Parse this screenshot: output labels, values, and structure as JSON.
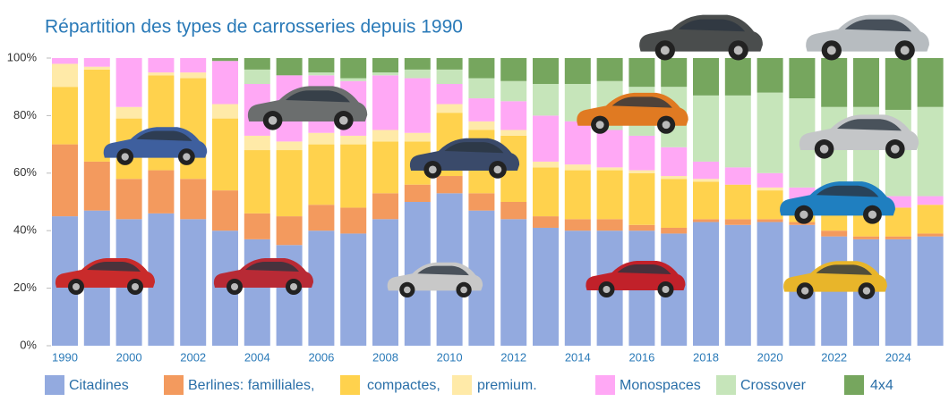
{
  "chart_data": {
    "type": "stacked-bar",
    "title": "Répartition des types de carrosseries depuis 1990",
    "categories": [
      "1990",
      null,
      "2000",
      null,
      "2002",
      null,
      "2004",
      null,
      "2006",
      null,
      "2008",
      null,
      "2010",
      null,
      "2012",
      null,
      "2014",
      null,
      "2016",
      null,
      "2018",
      null,
      "2020",
      null,
      "2022",
      null,
      "2024",
      null
    ],
    "series": [
      {
        "name": "Citadines",
        "color": "#93aadf",
        "values": [
          45,
          47,
          44,
          46,
          44,
          40,
          37,
          35,
          40,
          39,
          44,
          50,
          53,
          47,
          44,
          41,
          40,
          40,
          40,
          39,
          43,
          42,
          43,
          42,
          38,
          37,
          37,
          38
        ]
      },
      {
        "name": "Berlines: familliales,",
        "color": "#f39a5e",
        "values": [
          25,
          17,
          14,
          15,
          14,
          14,
          9,
          10,
          9,
          9,
          9,
          6,
          6,
          6,
          6,
          4,
          4,
          4,
          2,
          2,
          1,
          2,
          1,
          1,
          2,
          1,
          1,
          1
        ]
      },
      {
        "name": "compactes,",
        "color": "#ffd24d",
        "values": [
          20,
          32,
          21,
          33,
          35,
          25,
          22,
          23,
          21,
          22,
          18,
          15,
          22,
          22,
          23,
          17,
          17,
          17,
          18,
          17,
          13,
          12,
          10,
          8,
          8,
          8,
          10,
          10
        ]
      },
      {
        "name": "premium.",
        "color": "#ffeaa8",
        "values": [
          8,
          1,
          4,
          1,
          2,
          5,
          5,
          3,
          4,
          3,
          4,
          3,
          3,
          3,
          2,
          2,
          2,
          1,
          1,
          1,
          1,
          0,
          1,
          0,
          0,
          0,
          0,
          0
        ]
      },
      {
        "name": "Monospaces",
        "color": "#ffa8f5",
        "values": [
          2,
          3,
          17,
          5,
          5,
          15,
          18,
          23,
          20,
          19,
          19,
          19,
          7,
          8,
          10,
          16,
          15,
          13,
          12,
          10,
          6,
          6,
          5,
          4,
          3,
          4,
          4,
          3
        ]
      },
      {
        "name": "Crossover",
        "color": "#c6e5ba",
        "values": [
          0,
          0,
          0,
          0,
          0,
          0,
          5,
          0,
          1,
          1,
          1,
          3,
          5,
          7,
          7,
          11,
          13,
          17,
          17,
          21,
          23,
          25,
          28,
          31,
          32,
          33,
          30,
          31
        ]
      },
      {
        "name": "4x4",
        "color": "#76a65e",
        "values": [
          0,
          0,
          0,
          0,
          0,
          1,
          4,
          6,
          5,
          7,
          5,
          4,
          4,
          7,
          8,
          9,
          9,
          8,
          10,
          10,
          13,
          13,
          12,
          14,
          17,
          17,
          18,
          17
        ]
      }
    ],
    "ylim": [
      0,
      100
    ],
    "yticks": [
      {
        "value": 0,
        "label": "0%"
      },
      {
        "value": 20,
        "label": "20%"
      },
      {
        "value": 40,
        "label": "40%"
      },
      {
        "value": 60,
        "label": "60%"
      },
      {
        "value": 80,
        "label": "80%"
      },
      {
        "value": 100,
        "label": "100%"
      }
    ],
    "legend": "bottom"
  }
}
